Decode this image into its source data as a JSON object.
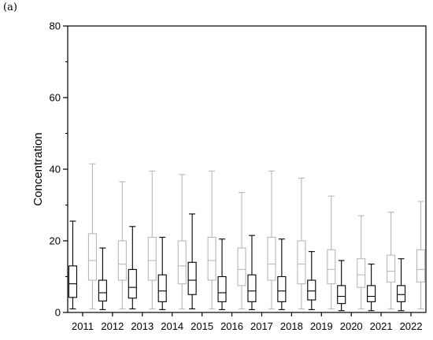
{
  "panel_label": "(a)",
  "chart_data": {
    "type": "box",
    "title": "",
    "xlabel": "",
    "ylabel": "Concentration",
    "ylim": [
      0,
      80
    ],
    "yticks": [
      0,
      20,
      40,
      60,
      80
    ],
    "grid": false,
    "categories": [
      "2011",
      "2012",
      "2013",
      "2014",
      "2015",
      "2016",
      "2017",
      "2018",
      "2019",
      "2020",
      "2021",
      "2022"
    ],
    "series": [
      {
        "color": "#000000",
        "boxes": [
          {
            "min": 1.0,
            "q1": 4.2,
            "median": 8.0,
            "q3": 13.0,
            "max": 25.5
          },
          {
            "min": 0.8,
            "q1": 3.2,
            "median": 5.5,
            "q3": 9.0,
            "max": 18.0
          },
          {
            "min": 1.0,
            "q1": 4.0,
            "median": 7.0,
            "q3": 12.0,
            "max": 24.0
          },
          {
            "min": 0.8,
            "q1": 3.0,
            "median": 6.0,
            "q3": 10.5,
            "max": 21.0
          },
          {
            "min": 1.0,
            "q1": 5.0,
            "median": 9.0,
            "q3": 14.0,
            "max": 27.5
          },
          {
            "min": 0.8,
            "q1": 3.0,
            "median": 5.5,
            "q3": 10.0,
            "max": 20.5
          },
          {
            "min": 0.8,
            "q1": 3.0,
            "median": 6.0,
            "q3": 10.5,
            "max": 21.5
          },
          {
            "min": 0.8,
            "q1": 3.0,
            "median": 6.0,
            "q3": 10.0,
            "max": 20.5
          },
          {
            "min": 0.8,
            "q1": 3.5,
            "median": 6.0,
            "q3": 9.0,
            "max": 17.0
          },
          {
            "min": 0.5,
            "q1": 2.5,
            "median": 4.5,
            "q3": 7.5,
            "max": 14.5
          },
          {
            "min": 0.5,
            "q1": 3.0,
            "median": 4.5,
            "q3": 7.5,
            "max": 13.5
          },
          {
            "min": 0.5,
            "q1": 3.0,
            "median": 5.0,
            "q3": 7.5,
            "max": 15.0
          }
        ]
      },
      {
        "color": "#b8b8b8",
        "boxes": [
          {
            "min": 1.0,
            "q1": 9.0,
            "median": 14.5,
            "q3": 22.0,
            "max": 41.5
          },
          {
            "min": 1.0,
            "q1": 9.0,
            "median": 13.5,
            "q3": 20.0,
            "max": 36.5
          },
          {
            "min": 1.0,
            "q1": 9.0,
            "median": 14.5,
            "q3": 21.0,
            "max": 39.5
          },
          {
            "min": 1.0,
            "q1": 8.0,
            "median": 13.0,
            "q3": 20.0,
            "max": 38.5
          },
          {
            "min": 1.0,
            "q1": 9.0,
            "median": 14.5,
            "q3": 21.0,
            "max": 39.5
          },
          {
            "min": 1.0,
            "q1": 7.5,
            "median": 12.0,
            "q3": 18.0,
            "max": 33.5
          },
          {
            "min": 1.0,
            "q1": 9.0,
            "median": 13.5,
            "q3": 21.0,
            "max": 39.5
          },
          {
            "min": 1.0,
            "q1": 8.0,
            "median": 13.5,
            "q3": 20.0,
            "max": 37.5
          },
          {
            "min": 1.0,
            "q1": 8.0,
            "median": 12.0,
            "q3": 17.5,
            "max": 32.5
          },
          {
            "min": 1.0,
            "q1": 7.0,
            "median": 10.5,
            "q3": 15.0,
            "max": 27.0
          },
          {
            "min": 1.0,
            "q1": 8.5,
            "median": 11.5,
            "q3": 16.0,
            "max": 28.0
          },
          {
            "min": 1.0,
            "q1": 8.5,
            "median": 12.0,
            "q3": 17.5,
            "max": 31.0
          }
        ]
      }
    ]
  }
}
